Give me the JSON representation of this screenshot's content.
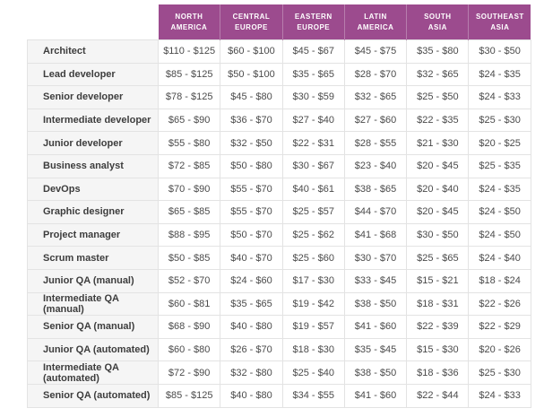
{
  "colors": {
    "header_bg": "#9c4b8e",
    "header_text": "#ffffff",
    "label_col_bg": "#f5f5f5",
    "border": "#e3e3e3"
  },
  "chart_data": {
    "type": "table",
    "columns": [
      {
        "id": "north-america",
        "lines": [
          "NORTH",
          "AMERICA"
        ]
      },
      {
        "id": "central-europe",
        "lines": [
          "CENTRAL",
          "EUROPE"
        ]
      },
      {
        "id": "eastern-europe",
        "lines": [
          "EASTERN",
          "EUROPE"
        ]
      },
      {
        "id": "latin-america",
        "lines": [
          "LATIN",
          "AMERICA"
        ]
      },
      {
        "id": "south-asia",
        "lines": [
          "SOUTH",
          "ASIA"
        ]
      },
      {
        "id": "southeast-asia",
        "lines": [
          "SOUTHEAST",
          "ASIA"
        ]
      }
    ],
    "rows": [
      {
        "role": "Architect",
        "values": [
          "$110 - $125",
          "$60 - $100",
          "$45 - $67",
          "$45 - $75",
          "$35 - $80",
          "$30 - $50"
        ]
      },
      {
        "role": "Lead developer",
        "values": [
          "$85 - $125",
          "$50 - $100",
          "$35 - $65",
          "$28 - $70",
          "$32 - $65",
          "$24 - $35"
        ]
      },
      {
        "role": "Senior developer",
        "values": [
          "$78 - $125",
          "$45 - $80",
          "$30 - $59",
          "$32 - $65",
          "$25 - $50",
          "$24 - $33"
        ]
      },
      {
        "role": "Intermediate developer",
        "values": [
          "$65 - $90",
          "$36 - $70",
          "$27 - $40",
          "$27 - $60",
          "$22 - $35",
          "$25 - $30"
        ]
      },
      {
        "role": "Junior developer",
        "values": [
          "$55 - $80",
          "$32 - $50",
          "$22 - $31",
          "$28 - $55",
          "$21 - $30",
          "$20 - $25"
        ]
      },
      {
        "role": "Business analyst",
        "values": [
          "$72 - $85",
          "$50 - $80",
          "$30 - $67",
          "$23 - $40",
          "$20 - $45",
          "$25 - $35"
        ]
      },
      {
        "role": "DevOps",
        "values": [
          "$70 - $90",
          "$55 - $70",
          "$40 - $61",
          "$38 - $65",
          "$20 - $40",
          "$24 - $35"
        ]
      },
      {
        "role": "Graphic designer",
        "values": [
          "$65 - $85",
          "$55 - $70",
          "$25 - $57",
          "$44 - $70",
          "$20 - $45",
          "$24 - $50"
        ]
      },
      {
        "role": "Project manager",
        "values": [
          "$88 - $95",
          "$50 - $70",
          "$25 - $62",
          "$41 - $68",
          "$30 - $50",
          "$24 - $50"
        ]
      },
      {
        "role": "Scrum master",
        "values": [
          "$50 - $85",
          "$40 - $70",
          "$25 - $60",
          "$30 - $70",
          "$25 - $65",
          "$24 - $40"
        ]
      },
      {
        "role": "Junior QA (manual)",
        "values": [
          "$52 - $70",
          "$24 - $60",
          "$17 - $30",
          "$33 - $45",
          "$15 - $21",
          "$18 - $24"
        ]
      },
      {
        "role": "Intermediate QA (manual)",
        "values": [
          "$60 - $81",
          "$35 - $65",
          "$19 - $42",
          "$38 - $50",
          "$18 - $31",
          "$22 - $26"
        ]
      },
      {
        "role": "Senior QA (manual)",
        "values": [
          "$68 - $90",
          "$40 - $80",
          "$19 - $57",
          "$41 - $60",
          "$22 - $39",
          "$22 - $29"
        ]
      },
      {
        "role": "Junior QA (automated)",
        "values": [
          "$60 - $80",
          "$26 - $70",
          "$18 - $30",
          "$35 - $45",
          "$15 - $30",
          "$20 - $26"
        ]
      },
      {
        "role": "Intermediate QA (automated)",
        "values": [
          "$72 - $90",
          "$32 - $80",
          "$25 - $40",
          "$38 - $50",
          "$18 - $36",
          "$25 - $30"
        ]
      },
      {
        "role": "Senior QA (automated)",
        "values": [
          "$85 - $125",
          "$40 - $80",
          "$34 - $55",
          "$41 - $60",
          "$22 - $44",
          "$24 - $33"
        ]
      }
    ]
  }
}
